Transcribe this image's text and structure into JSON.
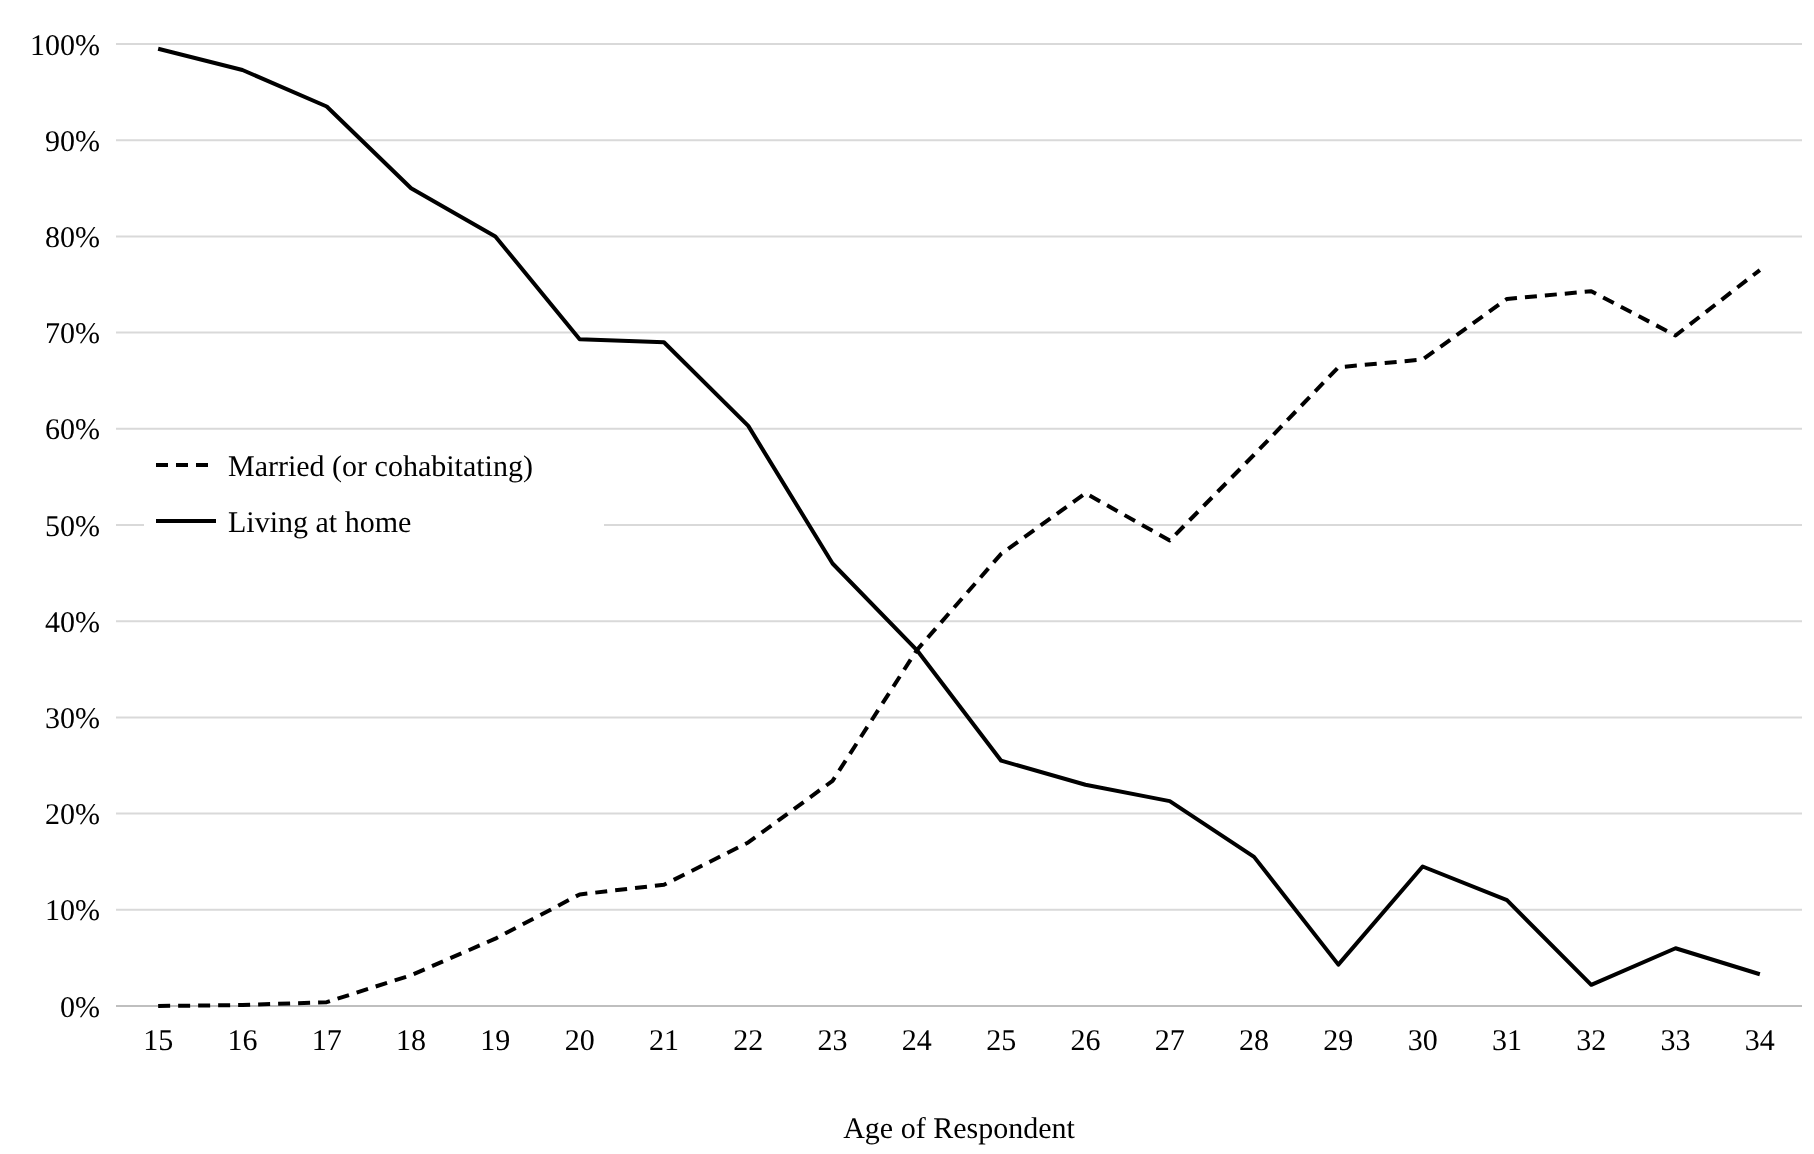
{
  "chart_data": {
    "type": "line",
    "xlabel": "Age of Respondent",
    "categories": [
      "15",
      "16",
      "17",
      "18",
      "19",
      "20",
      "21",
      "22",
      "23",
      "24",
      "25",
      "26",
      "27",
      "28",
      "29",
      "30",
      "31",
      "32",
      "33",
      "34"
    ],
    "series": [
      {
        "name": "Married (or cohabitating)",
        "color": "#000000",
        "line_style": "dashed",
        "values": [
          0,
          0.1,
          0.4,
          3.2,
          7,
          11.6,
          12.6,
          17,
          23.4,
          37,
          47,
          53.3,
          48.4,
          57.3,
          66.4,
          67.2,
          73.5,
          74.3,
          69.7,
          76.5
        ]
      },
      {
        "name": "Living at home",
        "color": "#000000",
        "line_style": "solid",
        "values": [
          99.5,
          97.3,
          93.5,
          85,
          80,
          69.3,
          69,
          60.3,
          46,
          37,
          25.5,
          23,
          21.3,
          15.5,
          4.3,
          14.5,
          11,
          2.2,
          6,
          3.3
        ]
      }
    ],
    "ylim": [
      0,
      100
    ],
    "yticks": [
      {
        "value": 0,
        "label": "0%"
      },
      {
        "value": 10,
        "label": "10%"
      },
      {
        "value": 20,
        "label": "20%"
      },
      {
        "value": 30,
        "label": "30%"
      },
      {
        "value": 40,
        "label": "40%"
      },
      {
        "value": 50,
        "label": "50%"
      },
      {
        "value": 60,
        "label": "60%"
      },
      {
        "value": 70,
        "label": "70%"
      },
      {
        "value": 80,
        "label": "80%"
      },
      {
        "value": 90,
        "label": "90%"
      },
      {
        "value": 100,
        "label": "100%"
      }
    ],
    "grid": "y",
    "legend": "left",
    "marker": "none"
  }
}
